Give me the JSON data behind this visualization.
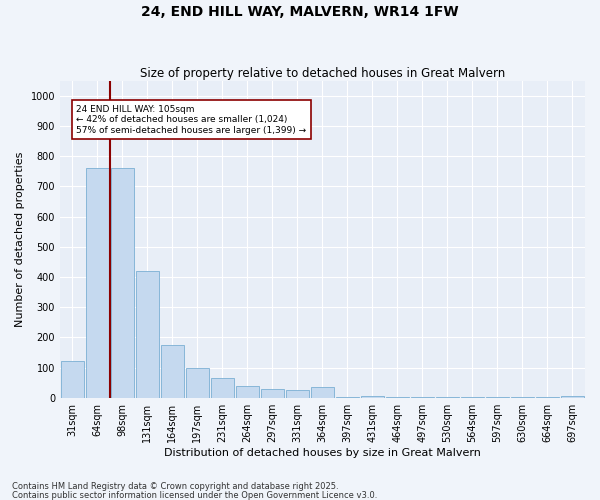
{
  "title": "24, END HILL WAY, MALVERN, WR14 1FW",
  "subtitle": "Size of property relative to detached houses in Great Malvern",
  "xlabel": "Distribution of detached houses by size in Great Malvern",
  "ylabel": "Number of detached properties",
  "categories": [
    "31sqm",
    "64sqm",
    "98sqm",
    "131sqm",
    "164sqm",
    "197sqm",
    "231sqm",
    "264sqm",
    "297sqm",
    "331sqm",
    "364sqm",
    "397sqm",
    "431sqm",
    "464sqm",
    "497sqm",
    "530sqm",
    "564sqm",
    "597sqm",
    "630sqm",
    "664sqm",
    "697sqm"
  ],
  "values": [
    120,
    760,
    760,
    420,
    175,
    100,
    65,
    40,
    30,
    25,
    35,
    2,
    5,
    2,
    2,
    2,
    2,
    2,
    2,
    2,
    5
  ],
  "bar_color": "#c5d9ef",
  "bar_edge_color": "#7bafd4",
  "vline_color": "#8b0000",
  "annotation_text": "24 END HILL WAY: 105sqm\n← 42% of detached houses are smaller (1,024)\n57% of semi-detached houses are larger (1,399) →",
  "annotation_box_color": "#ffffff",
  "annotation_box_edge_color": "#8b0000",
  "ylim": [
    0,
    1050
  ],
  "yticks": [
    0,
    100,
    200,
    300,
    400,
    500,
    600,
    700,
    800,
    900,
    1000
  ],
  "footnote1": "Contains HM Land Registry data © Crown copyright and database right 2025.",
  "footnote2": "Contains public sector information licensed under the Open Government Licence v3.0.",
  "bg_color": "#e8eef7",
  "fig_bg_color": "#f0f4fa",
  "title_fontsize": 10,
  "subtitle_fontsize": 8.5,
  "tick_fontsize": 7,
  "label_fontsize": 8,
  "footnote_fontsize": 6
}
